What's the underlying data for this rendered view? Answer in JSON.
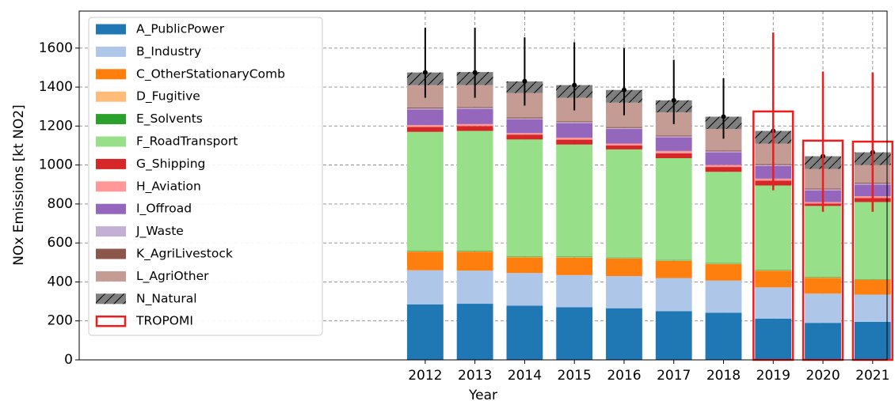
{
  "chart_data": {
    "type": "stacked-bar",
    "y_label": "NOx Emissions [kt NO2]",
    "x_label": "Year",
    "x": [
      2012,
      2013,
      2014,
      2015,
      2016,
      2017,
      2018,
      2019,
      2020,
      2021
    ],
    "xlim": [
      2005.04,
      2021.29
    ],
    "xticks": [
      2012,
      2013,
      2014,
      2015,
      2016,
      2017,
      2018,
      2019,
      2020,
      2021
    ],
    "ylim": [
      0,
      1790
    ],
    "yticks": [
      0,
      200,
      400,
      600,
      800,
      1000,
      1200,
      1400,
      1600
    ],
    "grid": true,
    "legend": "upper left",
    "series": [
      {
        "name": "A_PublicPower",
        "color": "#1f77b4",
        "values": [
          285,
          288,
          278,
          270,
          265,
          250,
          242,
          212,
          190,
          195
        ]
      },
      {
        "name": "B_Industry",
        "color": "#aec7e8",
        "values": [
          175,
          170,
          168,
          165,
          165,
          170,
          165,
          160,
          150,
          140
        ]
      },
      {
        "name": "C_OtherStationaryComb",
        "color": "#ff7f0e",
        "values": [
          95,
          97,
          80,
          90,
          90,
          88,
          85,
          85,
          80,
          75
        ]
      },
      {
        "name": "D_Fugitive",
        "color": "#ffbb78",
        "values": [
          2,
          2,
          2,
          2,
          2,
          2,
          2,
          2,
          2,
          2
        ]
      },
      {
        "name": "E_Solvents",
        "color": "#2ca02c",
        "values": [
          3,
          3,
          3,
          3,
          3,
          3,
          3,
          3,
          3,
          3
        ]
      },
      {
        "name": "F_RoadTransport",
        "color": "#98df8a",
        "values": [
          610,
          615,
          600,
          575,
          555,
          522,
          468,
          433,
          365,
          395
        ]
      },
      {
        "name": "G_Shipping",
        "color": "#d62728",
        "values": [
          25,
          25,
          25,
          25,
          20,
          25,
          25,
          25,
          12,
          20
        ]
      },
      {
        "name": "H_Aviation",
        "color": "#ff9896",
        "values": [
          10,
          10,
          8,
          10,
          10,
          12,
          10,
          10,
          8,
          10
        ]
      },
      {
        "name": "I_Offroad",
        "color": "#9467bd",
        "values": [
          80,
          78,
          70,
          75,
          75,
          70,
          65,
          65,
          60,
          60
        ]
      },
      {
        "name": "J_Waste",
        "color": "#c5b0d5",
        "values": [
          5,
          5,
          5,
          5,
          5,
          5,
          5,
          5,
          5,
          5
        ]
      },
      {
        "name": "K_AgriLivestock",
        "color": "#8c564b",
        "values": [
          5,
          5,
          5,
          5,
          5,
          5,
          5,
          5,
          5,
          5
        ]
      },
      {
        "name": "L_AgriOther",
        "color": "#c49c94",
        "values": [
          115,
          112,
          125,
          120,
          125,
          118,
          110,
          105,
          100,
          90
        ]
      },
      {
        "name": "N_Natural",
        "color": "#7f7f7f",
        "hatch": "/",
        "values": [
          65,
          67,
          60,
          65,
          65,
          62,
          63,
          65,
          65,
          65
        ]
      }
    ],
    "error_bars": {
      "color": "#000000",
      "center": [
        1475,
        1475,
        1430,
        1410,
        1385,
        1332,
        1248,
        1175,
        1045,
        1065
      ],
      "lower": [
        1345,
        1345,
        1305,
        1280,
        1255,
        1210,
        1135,
        1065,
        950,
        970
      ],
      "upper": [
        1705,
        1705,
        1655,
        1630,
        1600,
        1540,
        1445,
        1360,
        1210,
        1240
      ]
    },
    "tropomi": {
      "name": "TROPOMI",
      "color": "#ee1c1c",
      "x": [
        2019,
        2020,
        2021
      ],
      "values": [
        1275,
        1125,
        1120
      ],
      "lower": [
        870,
        760,
        760
      ],
      "upper": [
        1680,
        1480,
        1475
      ]
    }
  }
}
